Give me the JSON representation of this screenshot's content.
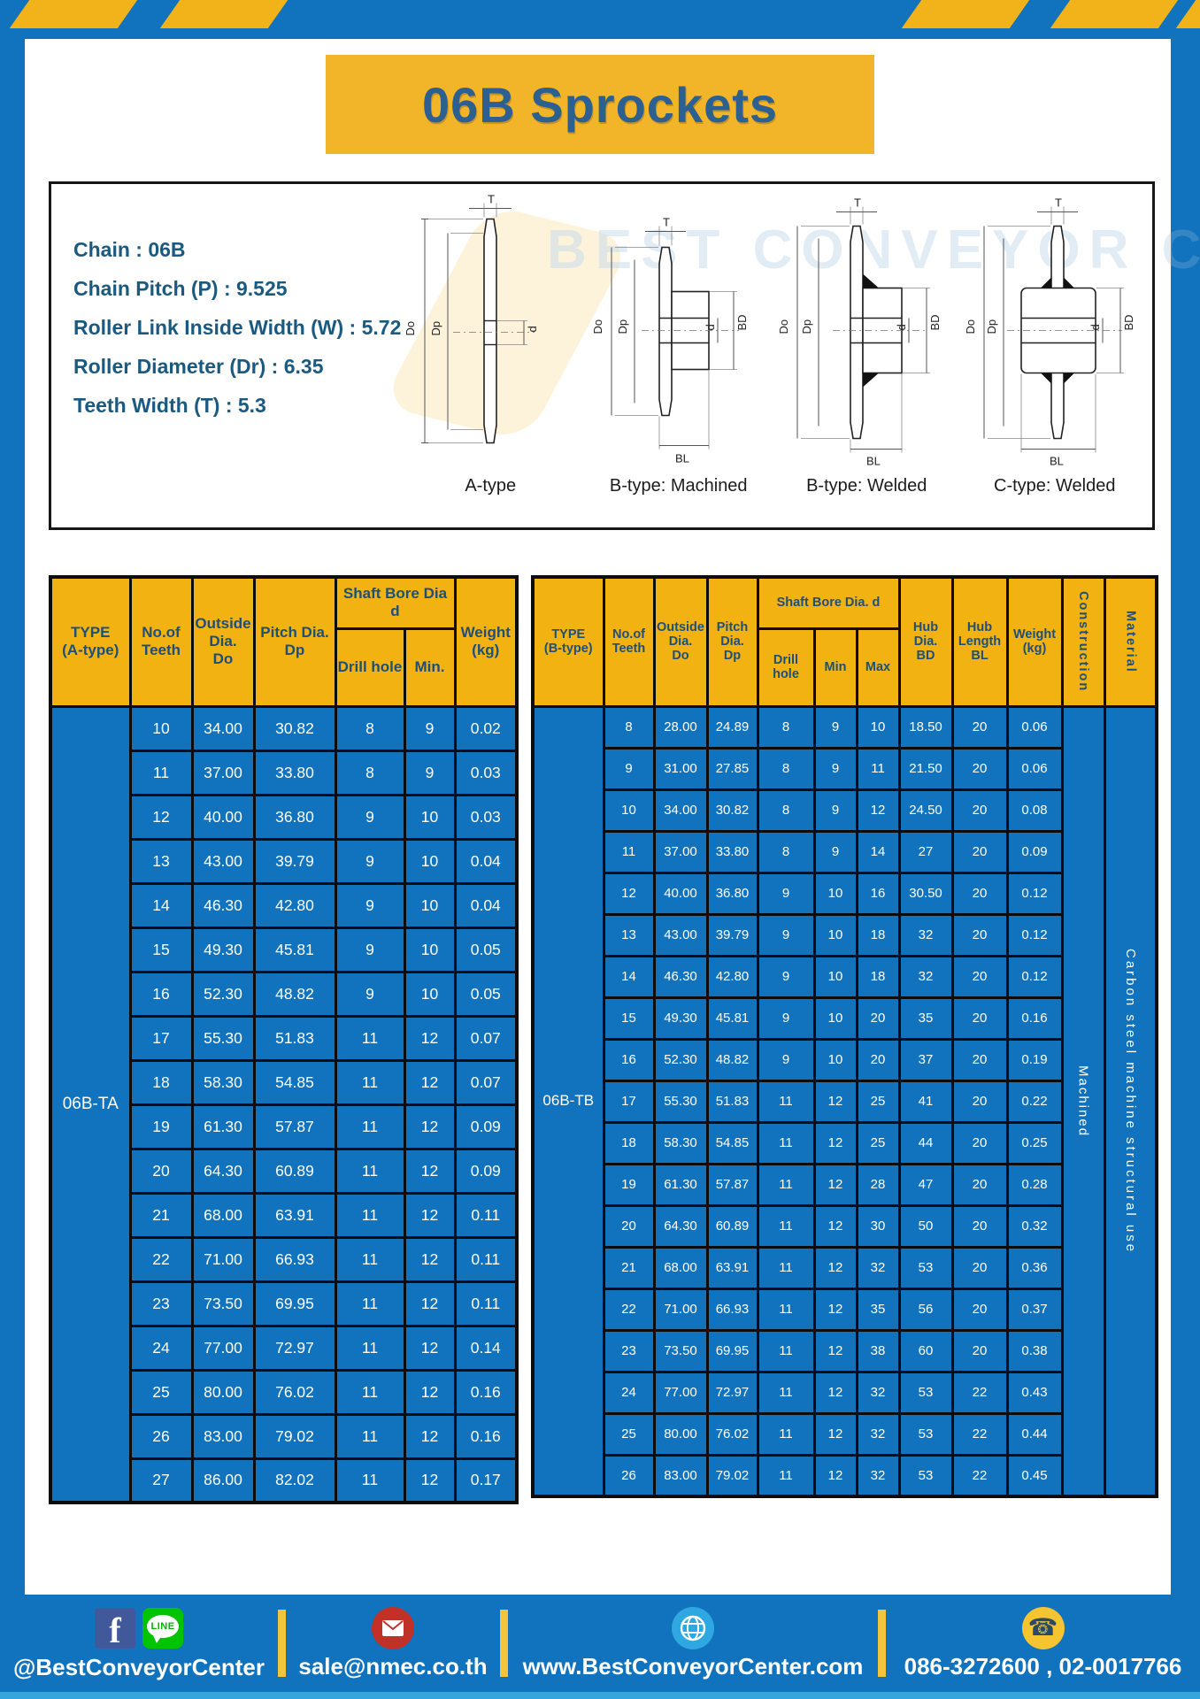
{
  "page": {
    "title": "06B Sprockets",
    "watermark": "BEST CONVEYOR CENTER"
  },
  "specs": {
    "lines": [
      "Chain : 06B",
      "Chain Pitch (P) : 9.525",
      "Roller Link Inside Width (W) : 5.72",
      "Roller Diameter (Dr) : 6.35",
      "Teeth Width (T) : 5.3"
    ]
  },
  "diagrams": {
    "labels": {
      "T": "T",
      "Do": "Do",
      "Dp": "Dp",
      "d": "d",
      "BD": "BD",
      "BL": "BL"
    },
    "captions": [
      "A-type",
      "B-type: Machined",
      "B-type: Welded",
      "C-type: Welded"
    ]
  },
  "tableA": {
    "headers": {
      "type": "TYPE\n(A-type)",
      "teeth": "No.of\nTeeth",
      "outside": "Outside\nDia.\nDo",
      "pitch": "Pitch Dia.\nDp",
      "shaft_bore": "Shaft Bore Dia d",
      "drill": "Drill hole",
      "min": "Min.",
      "weight": "Weight\n(kg)"
    },
    "type_label": "06B-TA",
    "rows": [
      [
        "10",
        "34.00",
        "30.82",
        "8",
        "9",
        "0.02"
      ],
      [
        "11",
        "37.00",
        "33.80",
        "8",
        "9",
        "0.03"
      ],
      [
        "12",
        "40.00",
        "36.80",
        "9",
        "10",
        "0.03"
      ],
      [
        "13",
        "43.00",
        "39.79",
        "9",
        "10",
        "0.04"
      ],
      [
        "14",
        "46.30",
        "42.80",
        "9",
        "10",
        "0.04"
      ],
      [
        "15",
        "49.30",
        "45.81",
        "9",
        "10",
        "0.05"
      ],
      [
        "16",
        "52.30",
        "48.82",
        "9",
        "10",
        "0.05"
      ],
      [
        "17",
        "55.30",
        "51.83",
        "11",
        "12",
        "0.07"
      ],
      [
        "18",
        "58.30",
        "54.85",
        "11",
        "12",
        "0.07"
      ],
      [
        "19",
        "61.30",
        "57.87",
        "11",
        "12",
        "0.09"
      ],
      [
        "20",
        "64.30",
        "60.89",
        "11",
        "12",
        "0.09"
      ],
      [
        "21",
        "68.00",
        "63.91",
        "11",
        "12",
        "0.11"
      ],
      [
        "22",
        "71.00",
        "66.93",
        "11",
        "12",
        "0.11"
      ],
      [
        "23",
        "73.50",
        "69.95",
        "11",
        "12",
        "0.11"
      ],
      [
        "24",
        "77.00",
        "72.97",
        "11",
        "12",
        "0.14"
      ],
      [
        "25",
        "80.00",
        "76.02",
        "11",
        "12",
        "0.16"
      ],
      [
        "26",
        "83.00",
        "79.02",
        "11",
        "12",
        "0.16"
      ],
      [
        "27",
        "86.00",
        "82.02",
        "11",
        "12",
        "0.17"
      ]
    ]
  },
  "tableB": {
    "headers": {
      "type": "TYPE\n(B-type)",
      "teeth": "No.of\nTeeth",
      "outside": "Outside\nDia.\nDo",
      "pitch": "Pitch\nDia.\nDp",
      "shaft_bore": "Shaft Bore Dia.  d",
      "drill": "Drill hole",
      "min": "Min",
      "max": "Max",
      "hub_dia": "Hub\nDia.\nBD",
      "hub_len": "Hub\nLength\nBL",
      "weight": "Weight\n(kg)",
      "construction": "Construction",
      "material": "Material"
    },
    "type_label": "06B-TB",
    "construction_value": "Machined",
    "material_value": "Carbon steel machine structural use",
    "rows": [
      [
        "8",
        "28.00",
        "24.89",
        "8",
        "9",
        "10",
        "18.50",
        "20",
        "0.06"
      ],
      [
        "9",
        "31.00",
        "27.85",
        "8",
        "9",
        "11",
        "21.50",
        "20",
        "0.06"
      ],
      [
        "10",
        "34.00",
        "30.82",
        "8",
        "9",
        "12",
        "24.50",
        "20",
        "0.08"
      ],
      [
        "11",
        "37.00",
        "33.80",
        "8",
        "9",
        "14",
        "27",
        "20",
        "0.09"
      ],
      [
        "12",
        "40.00",
        "36.80",
        "9",
        "10",
        "16",
        "30.50",
        "20",
        "0.12"
      ],
      [
        "13",
        "43.00",
        "39.79",
        "9",
        "10",
        "18",
        "32",
        "20",
        "0.12"
      ],
      [
        "14",
        "46.30",
        "42.80",
        "9",
        "10",
        "18",
        "32",
        "20",
        "0.12"
      ],
      [
        "15",
        "49.30",
        "45.81",
        "9",
        "10",
        "20",
        "35",
        "20",
        "0.16"
      ],
      [
        "16",
        "52.30",
        "48.82",
        "9",
        "10",
        "20",
        "37",
        "20",
        "0.19"
      ],
      [
        "17",
        "55.30",
        "51.83",
        "11",
        "12",
        "25",
        "41",
        "20",
        "0.22"
      ],
      [
        "18",
        "58.30",
        "54.85",
        "11",
        "12",
        "25",
        "44",
        "20",
        "0.25"
      ],
      [
        "19",
        "61.30",
        "57.87",
        "11",
        "12",
        "28",
        "47",
        "20",
        "0.28"
      ],
      [
        "20",
        "64.30",
        "60.89",
        "11",
        "12",
        "30",
        "50",
        "20",
        "0.32"
      ],
      [
        "21",
        "68.00",
        "63.91",
        "11",
        "12",
        "32",
        "53",
        "20",
        "0.36"
      ],
      [
        "22",
        "71.00",
        "66.93",
        "11",
        "12",
        "35",
        "56",
        "20",
        "0.37"
      ],
      [
        "23",
        "73.50",
        "69.95",
        "11",
        "12",
        "38",
        "60",
        "20",
        "0.38"
      ],
      [
        "24",
        "77.00",
        "72.97",
        "11",
        "12",
        "32",
        "53",
        "22",
        "0.43"
      ],
      [
        "25",
        "80.00",
        "76.02",
        "11",
        "12",
        "32",
        "53",
        "22",
        "0.44"
      ],
      [
        "26",
        "83.00",
        "79.02",
        "11",
        "12",
        "32",
        "53",
        "22",
        "0.45"
      ]
    ]
  },
  "footer": {
    "facebook_glyph": "f",
    "line_badge": "LINE",
    "phone_glyph": "☎",
    "items": [
      {
        "label": "@BestConveyorCenter"
      },
      {
        "label": "sale@nmec.co.th"
      },
      {
        "label": "www.BestConveyorCenter.com"
      },
      {
        "label": "086-3272600 , 02-0017766"
      }
    ]
  },
  "colors": {
    "blue": "#1173bd",
    "yellow": "#f2b21a",
    "header_text": "#1d4f79",
    "title_text": "#2c6090"
  }
}
